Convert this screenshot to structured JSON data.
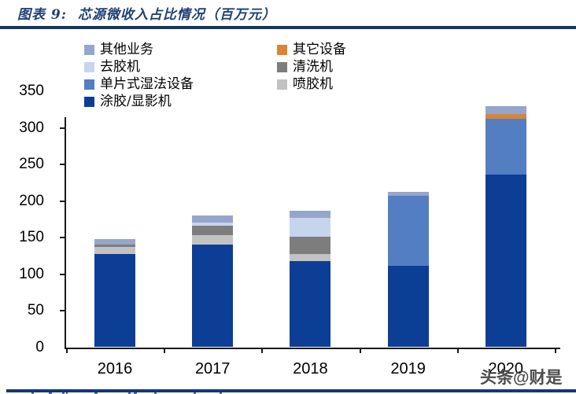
{
  "header": {
    "title": "图表 9:  芯源微收入占比情况（百万元）"
  },
  "watermark": {
    "text": "头条@财是"
  },
  "colors": {
    "title_text": "#1F4077",
    "title_rule": "#17375E",
    "bottom_rule": "#14396F",
    "axis": "#1a1a1a"
  },
  "chart_data": {
    "type": "bar",
    "subtype": "stacked-column",
    "title": "芯源微收入占比情况（百万元）",
    "xlabel": "",
    "ylabel": "",
    "categories": [
      "2016",
      "2017",
      "2018",
      "2019",
      "2020"
    ],
    "yticks": [
      0,
      50,
      100,
      150,
      200,
      250,
      300,
      350
    ],
    "ylim": [
      0,
      350
    ],
    "grid": false,
    "legend_position": "top-left-two-columns",
    "series": [
      {
        "name": "涂胶/显影机",
        "color": "#0C3E96",
        "values": [
          128,
          140,
          118,
          111,
          236
        ]
      },
      {
        "name": "单片式湿法设备",
        "color": "#537EC2",
        "values": [
          0,
          0,
          0,
          96,
          77
        ]
      },
      {
        "name": "喷胶机",
        "color": "#C2C2C2",
        "values": [
          9,
          13,
          10,
          0,
          0
        ]
      },
      {
        "name": "清洗机",
        "color": "#7D7D7D",
        "values": [
          4,
          13,
          23,
          0,
          0
        ]
      },
      {
        "name": "去胶机",
        "color": "#C6D5EC",
        "values": [
          0,
          5,
          26,
          0,
          0
        ]
      },
      {
        "name": "其它设备",
        "color": "#DD8433",
        "values": [
          0,
          0,
          0,
          0,
          6
        ]
      },
      {
        "name": "其他业务",
        "color": "#94A6CB",
        "values": [
          7,
          9,
          10,
          6,
          11
        ]
      }
    ],
    "totals": [
      148,
      180,
      187,
      213,
      330
    ],
    "legend_rows": [
      [
        "其他业务",
        "其它设备"
      ],
      [
        "去胶机",
        "清洗机"
      ],
      [
        "单片式湿法设备",
        "喷胶机"
      ],
      [
        "涂胶/显影机"
      ]
    ]
  }
}
